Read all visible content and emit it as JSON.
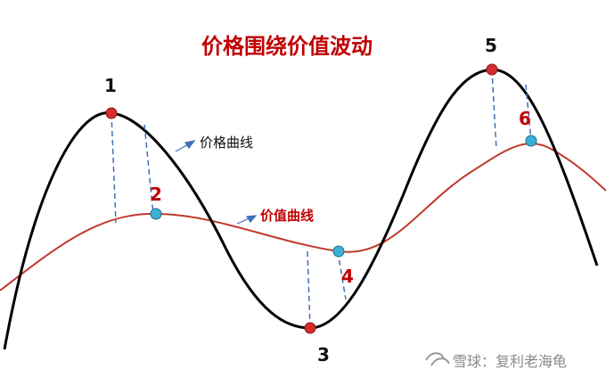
{
  "title": "价格围绕价值波动",
  "labels": {
    "price_curve": "价格曲线",
    "value_curve": "价值曲线"
  },
  "points": {
    "p1": "1",
    "p2": "2",
    "p3": "3",
    "p4": "4",
    "p5": "5",
    "p6": "6"
  },
  "watermark": "雪球：复利老海龟",
  "colors": {
    "title": "#c00000",
    "price_curve": "#000000",
    "value_curve": "#c0392b",
    "dashed": "#3f6fb5",
    "red_point": "#d62b2b",
    "cyan_point": "#3bb0d6"
  }
}
